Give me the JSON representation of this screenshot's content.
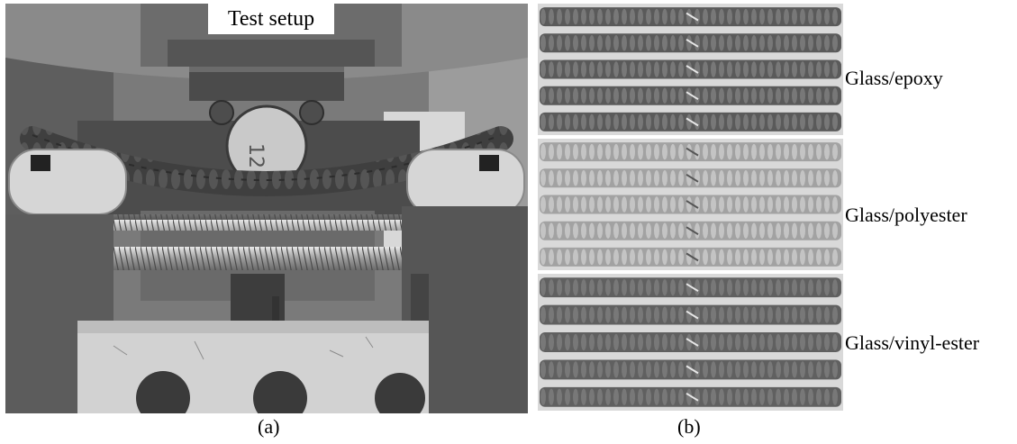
{
  "panel_a": {
    "title": "Test setup",
    "caption": "(a)"
  },
  "panel_b": {
    "caption": "(b)",
    "groups": [
      {
        "label": "Glass/epoxy",
        "bar_count": 5,
        "tone": "#5a5a5a"
      },
      {
        "label": "Glass/polyester",
        "bar_count": 5,
        "tone": "#a2a2a2"
      },
      {
        "label": "Glass/vinyl-ester",
        "bar_count": 5,
        "tone": "#606060"
      }
    ]
  }
}
